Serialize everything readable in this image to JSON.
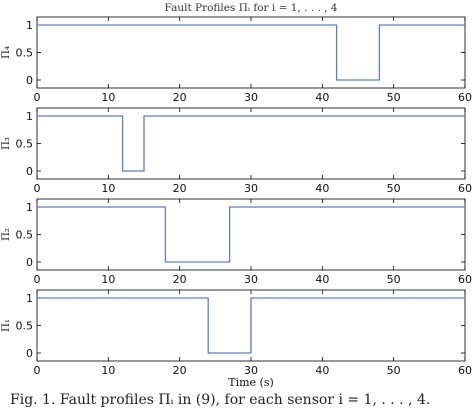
{
  "caption": "Fig. 1.   Fault profiles Πᵢ in (9), for each sensor i = 1, . . . , 4.",
  "chart_data": [
    {
      "type": "line",
      "title": "Fault Profiles Πᵢ for i = 1, . . . , 4",
      "ylabel": "Π₄",
      "xlabel": "",
      "xlim": [
        0,
        60
      ],
      "ylim": [
        0,
        1
      ],
      "xticks": [
        "0",
        "10",
        "20",
        "30",
        "40",
        "50",
        "60"
      ],
      "yticks": [
        "0",
        "0.5",
        "1"
      ],
      "grid": false,
      "x": [
        0,
        42,
        42,
        48,
        48,
        60
      ],
      "y": [
        1,
        1,
        0,
        0,
        1,
        1
      ],
      "line_color": "#5b7fc4"
    },
    {
      "type": "line",
      "title": "",
      "ylabel": "Π₃",
      "xlabel": "",
      "xlim": [
        0,
        60
      ],
      "ylim": [
        0,
        1
      ],
      "xticks": [
        "0",
        "10",
        "20",
        "30",
        "40",
        "50",
        "60"
      ],
      "yticks": [
        "0",
        "0.5",
        "1"
      ],
      "grid": false,
      "x": [
        0,
        12,
        12,
        15,
        15,
        60
      ],
      "y": [
        1,
        1,
        0,
        0,
        1,
        1
      ],
      "line_color": "#5b7fc4"
    },
    {
      "type": "line",
      "title": "",
      "ylabel": "Π₂",
      "xlabel": "",
      "xlim": [
        0,
        60
      ],
      "ylim": [
        0,
        1
      ],
      "xticks": [
        "0",
        "10",
        "20",
        "30",
        "40",
        "50",
        "60"
      ],
      "yticks": [
        "0",
        "0.5",
        "1"
      ],
      "grid": false,
      "x": [
        0,
        18,
        18,
        27,
        27,
        60
      ],
      "y": [
        1,
        1,
        0,
        0,
        1,
        1
      ],
      "line_color": "#5b7fc4"
    },
    {
      "type": "line",
      "title": "",
      "ylabel": "Π₁",
      "xlabel": "Time (s)",
      "xlim": [
        0,
        60
      ],
      "ylim": [
        0,
        1
      ],
      "xticks": [
        "0",
        "10",
        "20",
        "30",
        "40",
        "50",
        "60"
      ],
      "yticks": [
        "0",
        "0.5",
        "1"
      ],
      "grid": false,
      "x": [
        0,
        24,
        24,
        30,
        30,
        60
      ],
      "y": [
        1,
        1,
        0,
        0,
        1,
        1
      ],
      "line_color": "#5b7fc4"
    }
  ]
}
